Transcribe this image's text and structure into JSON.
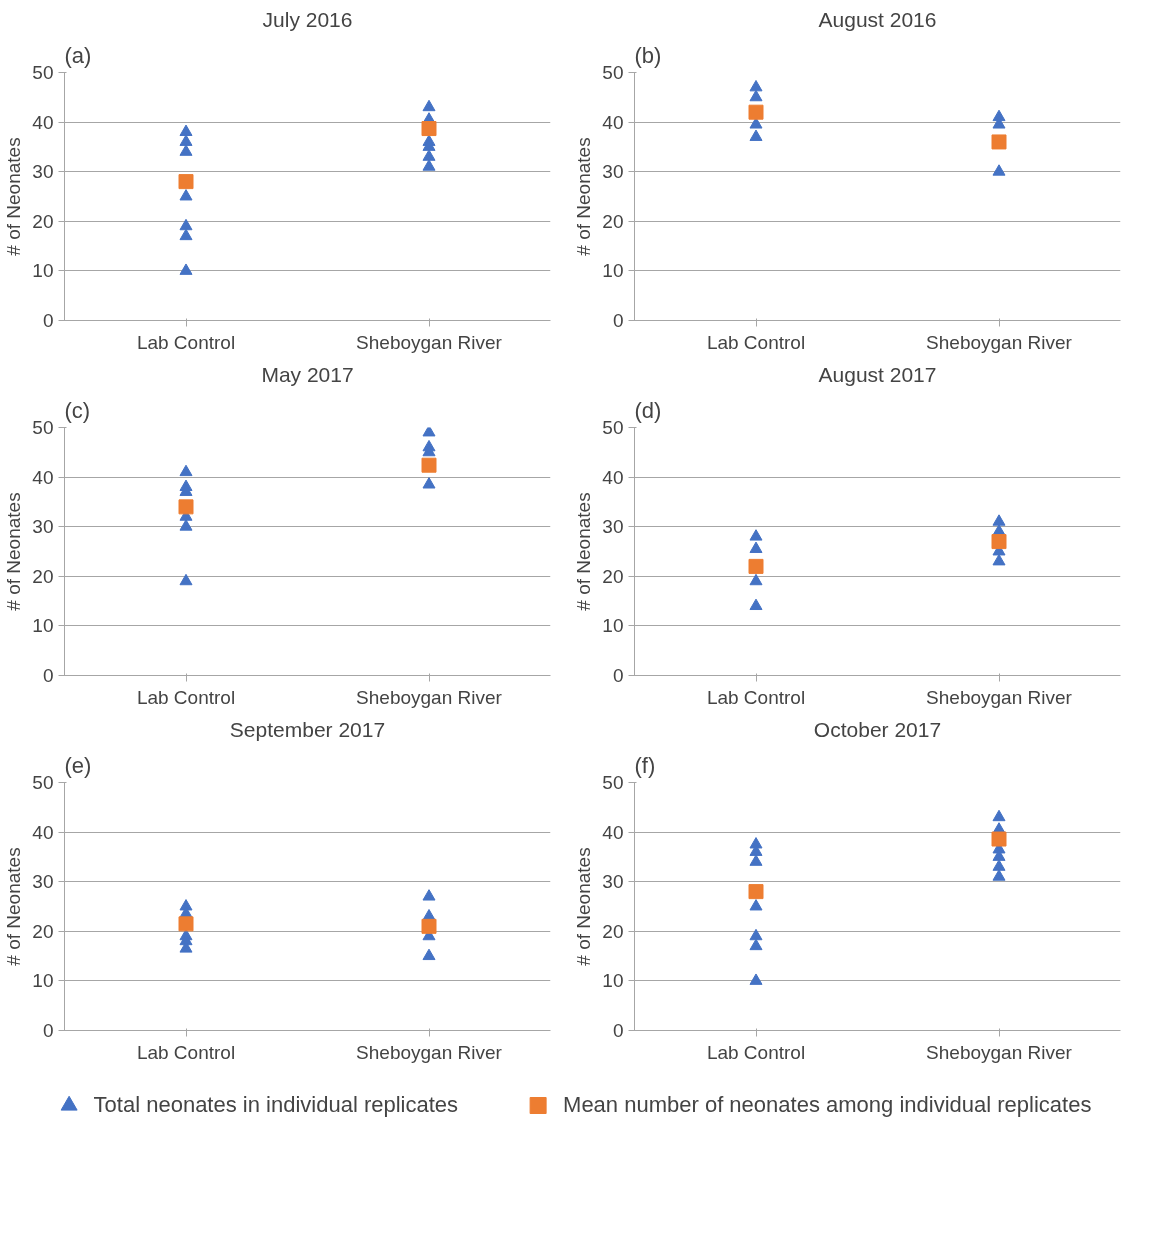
{
  "chart_data": [
    {
      "type": "scatter",
      "title": "July 2016",
      "annotations": [
        "(a)"
      ],
      "ylabel": "# of Neonates",
      "categories": [
        "Lab Control",
        "Sheboygan River"
      ],
      "ylim": [
        0,
        50
      ],
      "yticks": [
        0,
        10,
        20,
        30,
        40,
        50
      ],
      "grid": "y",
      "series": [
        {
          "color": "#4472c4",
          "marker": "triangle",
          "x": [
            "Lab Control",
            "Lab Control",
            "Lab Control",
            "Lab Control",
            "Lab Control",
            "Lab Control",
            "Lab Control",
            "Sheboygan River",
            "Sheboygan River",
            "Sheboygan River",
            "Sheboygan River",
            "Sheboygan River",
            "Sheboygan River",
            "Sheboygan River"
          ],
          "values": [
            38,
            36,
            34,
            25,
            19,
            17,
            10,
            43,
            40.5,
            null,
            36,
            35,
            33,
            31
          ]
        },
        {
          "color": "#ed7d31",
          "marker": "square",
          "x": [
            "Lab Control",
            "Sheboygan River"
          ],
          "values": [
            28,
            38.7
          ]
        }
      ]
    },
    {
      "type": "scatter",
      "title": "August 2016",
      "annotations": [
        "(b)"
      ],
      "ylabel": "# of Neonates",
      "categories": [
        "Lab Control",
        "Sheboygan River"
      ],
      "ylim": [
        0,
        50
      ],
      "yticks": [
        0,
        10,
        20,
        30,
        40,
        50
      ],
      "grid": "y",
      "series": [
        {
          "color": "#4472c4",
          "marker": "triangle",
          "x": [
            "Lab Control",
            "Lab Control",
            "Lab Control",
            "Lab Control",
            "Sheboygan River",
            "Sheboygan River",
            "Sheboygan River",
            "Sheboygan River"
          ],
          "values": [
            47,
            45,
            39.5,
            37,
            41,
            39.5,
            null,
            30
          ]
        },
        {
          "color": "#ed7d31",
          "marker": "square",
          "x": [
            "Lab Control",
            "Sheboygan River"
          ],
          "values": [
            42,
            36
          ]
        }
      ]
    },
    {
      "type": "scatter",
      "title": "May 2017",
      "annotations": [
        "(c)"
      ],
      "ylabel": "# of Neonates",
      "categories": [
        "Lab Control",
        "Sheboygan River"
      ],
      "ylim": [
        0,
        50
      ],
      "yticks": [
        0,
        10,
        20,
        30,
        40,
        50
      ],
      "grid": "y",
      "series": [
        {
          "color": "#4472c4",
          "marker": "triangle",
          "x": [
            "Lab Control",
            "Lab Control",
            "Lab Control",
            "Lab Control",
            "Lab Control",
            "Lab Control",
            "Sheboygan River",
            "Sheboygan River",
            "Sheboygan River",
            "Sheboygan River"
          ],
          "values": [
            41,
            38,
            37,
            32,
            30,
            19,
            49,
            46,
            45,
            38.5
          ]
        },
        {
          "color": "#ed7d31",
          "marker": "square",
          "x": [
            "Lab Control",
            "Sheboygan River"
          ],
          "values": [
            34,
            42.4
          ]
        }
      ]
    },
    {
      "type": "scatter",
      "title": "August 2017",
      "annotations": [
        "(d)"
      ],
      "ylabel": "# of Neonates",
      "categories": [
        "Lab Control",
        "Sheboygan River"
      ],
      "ylim": [
        0,
        50
      ],
      "yticks": [
        0,
        10,
        20,
        30,
        40,
        50
      ],
      "grid": "y",
      "series": [
        {
          "color": "#4472c4",
          "marker": "triangle",
          "x": [
            "Lab Control",
            "Lab Control",
            "Lab Control",
            "Lab Control",
            "Sheboygan River",
            "Sheboygan River",
            "Sheboygan River",
            "Sheboygan River"
          ],
          "values": [
            28,
            25.5,
            19,
            14,
            31,
            29,
            25,
            23
          ]
        },
        {
          "color": "#ed7d31",
          "marker": "square",
          "x": [
            "Lab Control",
            "Sheboygan River"
          ],
          "values": [
            22,
            27
          ]
        }
      ]
    },
    {
      "type": "scatter",
      "title": "September 2017",
      "annotations": [
        "(e)"
      ],
      "ylabel": "# of Neonates",
      "categories": [
        "Lab Control",
        "Sheboygan River"
      ],
      "ylim": [
        0,
        50
      ],
      "yticks": [
        0,
        10,
        20,
        30,
        40,
        50
      ],
      "grid": "y",
      "series": [
        {
          "color": "#4472c4",
          "marker": "triangle",
          "x": [
            "Lab Control",
            "Lab Control",
            "Lab Control",
            "Lab Control",
            "Lab Control",
            "Sheboygan River",
            "Sheboygan River",
            "Sheboygan River",
            "Sheboygan River"
          ],
          "values": [
            25,
            23.5,
            19,
            18,
            16.5,
            27,
            23,
            19,
            15
          ]
        },
        {
          "color": "#ed7d31",
          "marker": "square",
          "x": [
            "Lab Control",
            "Sheboygan River"
          ],
          "values": [
            21.5,
            21
          ]
        }
      ]
    },
    {
      "type": "scatter",
      "title": "October 2017",
      "annotations": [
        "(f)"
      ],
      "ylabel": "# of Neonates",
      "categories": [
        "Lab Control",
        "Sheboygan River"
      ],
      "ylim": [
        0,
        50
      ],
      "yticks": [
        0,
        10,
        20,
        30,
        40,
        50
      ],
      "grid": "y",
      "legend": "bottom",
      "series": [
        {
          "name": "Total neonates in individual replicates",
          "color": "#4472c4",
          "marker": "triangle",
          "x": [
            "Lab Control",
            "Lab Control",
            "Lab Control",
            "Lab Control",
            "Lab Control",
            "Lab Control",
            "Lab Control",
            "Sheboygan River",
            "Sheboygan River",
            "Sheboygan River",
            "Sheboygan River",
            "Sheboygan River",
            "Sheboygan River"
          ],
          "values": [
            37.5,
            36,
            34,
            25,
            19,
            17,
            10,
            43,
            40.5,
            36.5,
            35,
            33,
            31
          ]
        },
        {
          "name": "Mean number of neonates among individual replicates",
          "color": "#ed7d31",
          "marker": "square",
          "x": [
            "Lab Control",
            "Sheboygan River"
          ],
          "values": [
            28,
            38.6
          ]
        }
      ]
    }
  ]
}
